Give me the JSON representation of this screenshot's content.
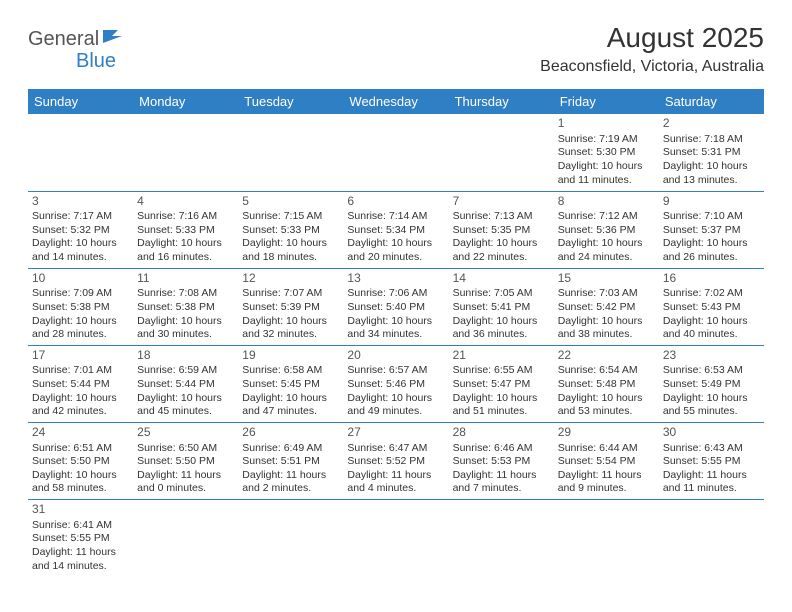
{
  "logo": {
    "part1": "General",
    "part2": "Blue"
  },
  "title": "August 2025",
  "location": "Beaconsfield, Victoria, Australia",
  "header_bg": "#2f7fc4",
  "header_fg": "#ffffff",
  "border_color": "#2f7fc4",
  "weekdays": [
    "Sunday",
    "Monday",
    "Tuesday",
    "Wednesday",
    "Thursday",
    "Friday",
    "Saturday"
  ],
  "weeks": [
    [
      null,
      null,
      null,
      null,
      null,
      {
        "d": "1",
        "sr": "Sunrise: 7:19 AM",
        "ss": "Sunset: 5:30 PM",
        "dl1": "Daylight: 10 hours",
        "dl2": "and 11 minutes."
      },
      {
        "d": "2",
        "sr": "Sunrise: 7:18 AM",
        "ss": "Sunset: 5:31 PM",
        "dl1": "Daylight: 10 hours",
        "dl2": "and 13 minutes."
      }
    ],
    [
      {
        "d": "3",
        "sr": "Sunrise: 7:17 AM",
        "ss": "Sunset: 5:32 PM",
        "dl1": "Daylight: 10 hours",
        "dl2": "and 14 minutes."
      },
      {
        "d": "4",
        "sr": "Sunrise: 7:16 AM",
        "ss": "Sunset: 5:33 PM",
        "dl1": "Daylight: 10 hours",
        "dl2": "and 16 minutes."
      },
      {
        "d": "5",
        "sr": "Sunrise: 7:15 AM",
        "ss": "Sunset: 5:33 PM",
        "dl1": "Daylight: 10 hours",
        "dl2": "and 18 minutes."
      },
      {
        "d": "6",
        "sr": "Sunrise: 7:14 AM",
        "ss": "Sunset: 5:34 PM",
        "dl1": "Daylight: 10 hours",
        "dl2": "and 20 minutes."
      },
      {
        "d": "7",
        "sr": "Sunrise: 7:13 AM",
        "ss": "Sunset: 5:35 PM",
        "dl1": "Daylight: 10 hours",
        "dl2": "and 22 minutes."
      },
      {
        "d": "8",
        "sr": "Sunrise: 7:12 AM",
        "ss": "Sunset: 5:36 PM",
        "dl1": "Daylight: 10 hours",
        "dl2": "and 24 minutes."
      },
      {
        "d": "9",
        "sr": "Sunrise: 7:10 AM",
        "ss": "Sunset: 5:37 PM",
        "dl1": "Daylight: 10 hours",
        "dl2": "and 26 minutes."
      }
    ],
    [
      {
        "d": "10",
        "sr": "Sunrise: 7:09 AM",
        "ss": "Sunset: 5:38 PM",
        "dl1": "Daylight: 10 hours",
        "dl2": "and 28 minutes."
      },
      {
        "d": "11",
        "sr": "Sunrise: 7:08 AM",
        "ss": "Sunset: 5:38 PM",
        "dl1": "Daylight: 10 hours",
        "dl2": "and 30 minutes."
      },
      {
        "d": "12",
        "sr": "Sunrise: 7:07 AM",
        "ss": "Sunset: 5:39 PM",
        "dl1": "Daylight: 10 hours",
        "dl2": "and 32 minutes."
      },
      {
        "d": "13",
        "sr": "Sunrise: 7:06 AM",
        "ss": "Sunset: 5:40 PM",
        "dl1": "Daylight: 10 hours",
        "dl2": "and 34 minutes."
      },
      {
        "d": "14",
        "sr": "Sunrise: 7:05 AM",
        "ss": "Sunset: 5:41 PM",
        "dl1": "Daylight: 10 hours",
        "dl2": "and 36 minutes."
      },
      {
        "d": "15",
        "sr": "Sunrise: 7:03 AM",
        "ss": "Sunset: 5:42 PM",
        "dl1": "Daylight: 10 hours",
        "dl2": "and 38 minutes."
      },
      {
        "d": "16",
        "sr": "Sunrise: 7:02 AM",
        "ss": "Sunset: 5:43 PM",
        "dl1": "Daylight: 10 hours",
        "dl2": "and 40 minutes."
      }
    ],
    [
      {
        "d": "17",
        "sr": "Sunrise: 7:01 AM",
        "ss": "Sunset: 5:44 PM",
        "dl1": "Daylight: 10 hours",
        "dl2": "and 42 minutes."
      },
      {
        "d": "18",
        "sr": "Sunrise: 6:59 AM",
        "ss": "Sunset: 5:44 PM",
        "dl1": "Daylight: 10 hours",
        "dl2": "and 45 minutes."
      },
      {
        "d": "19",
        "sr": "Sunrise: 6:58 AM",
        "ss": "Sunset: 5:45 PM",
        "dl1": "Daylight: 10 hours",
        "dl2": "and 47 minutes."
      },
      {
        "d": "20",
        "sr": "Sunrise: 6:57 AM",
        "ss": "Sunset: 5:46 PM",
        "dl1": "Daylight: 10 hours",
        "dl2": "and 49 minutes."
      },
      {
        "d": "21",
        "sr": "Sunrise: 6:55 AM",
        "ss": "Sunset: 5:47 PM",
        "dl1": "Daylight: 10 hours",
        "dl2": "and 51 minutes."
      },
      {
        "d": "22",
        "sr": "Sunrise: 6:54 AM",
        "ss": "Sunset: 5:48 PM",
        "dl1": "Daylight: 10 hours",
        "dl2": "and 53 minutes."
      },
      {
        "d": "23",
        "sr": "Sunrise: 6:53 AM",
        "ss": "Sunset: 5:49 PM",
        "dl1": "Daylight: 10 hours",
        "dl2": "and 55 minutes."
      }
    ],
    [
      {
        "d": "24",
        "sr": "Sunrise: 6:51 AM",
        "ss": "Sunset: 5:50 PM",
        "dl1": "Daylight: 10 hours",
        "dl2": "and 58 minutes."
      },
      {
        "d": "25",
        "sr": "Sunrise: 6:50 AM",
        "ss": "Sunset: 5:50 PM",
        "dl1": "Daylight: 11 hours",
        "dl2": "and 0 minutes."
      },
      {
        "d": "26",
        "sr": "Sunrise: 6:49 AM",
        "ss": "Sunset: 5:51 PM",
        "dl1": "Daylight: 11 hours",
        "dl2": "and 2 minutes."
      },
      {
        "d": "27",
        "sr": "Sunrise: 6:47 AM",
        "ss": "Sunset: 5:52 PM",
        "dl1": "Daylight: 11 hours",
        "dl2": "and 4 minutes."
      },
      {
        "d": "28",
        "sr": "Sunrise: 6:46 AM",
        "ss": "Sunset: 5:53 PM",
        "dl1": "Daylight: 11 hours",
        "dl2": "and 7 minutes."
      },
      {
        "d": "29",
        "sr": "Sunrise: 6:44 AM",
        "ss": "Sunset: 5:54 PM",
        "dl1": "Daylight: 11 hours",
        "dl2": "and 9 minutes."
      },
      {
        "d": "30",
        "sr": "Sunrise: 6:43 AM",
        "ss": "Sunset: 5:55 PM",
        "dl1": "Daylight: 11 hours",
        "dl2": "and 11 minutes."
      }
    ],
    [
      {
        "d": "31",
        "sr": "Sunrise: 6:41 AM",
        "ss": "Sunset: 5:55 PM",
        "dl1": "Daylight: 11 hours",
        "dl2": "and 14 minutes."
      },
      null,
      null,
      null,
      null,
      null,
      null
    ]
  ]
}
